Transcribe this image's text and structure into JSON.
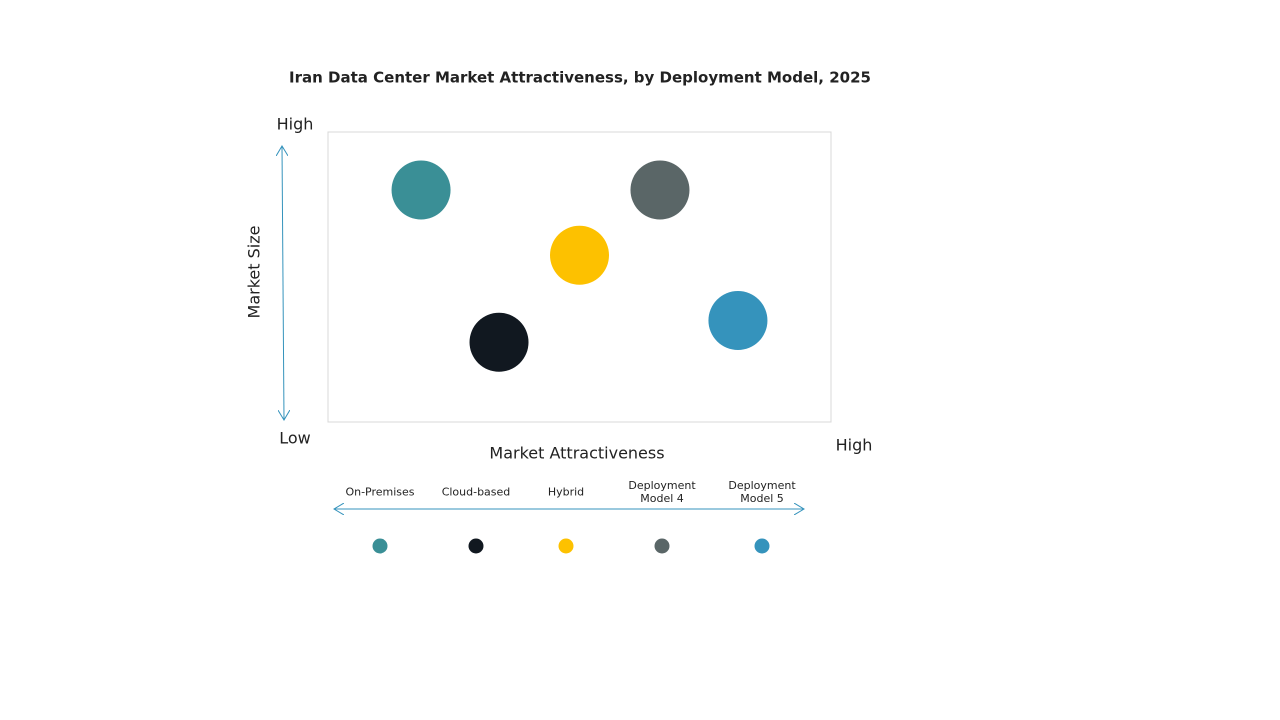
{
  "chart_data": {
    "type": "bubble",
    "title": "Iran Data Center Market Attractiveness,  by Deployment Model, 2025",
    "x_label": "Market Attractiveness",
    "y_label": "Market Size",
    "xlim": [
      0,
      10
    ],
    "ylim": [
      0,
      10
    ],
    "xticks": [
      {
        "value": 10,
        "label": "High"
      }
    ],
    "yticks": [
      {
        "value": 0,
        "label": "Low"
      },
      {
        "value": 10,
        "label": "High"
      }
    ],
    "series": [
      {
        "name": "On-Premises",
        "color": "#3a8f96",
        "x": [
          1.85
        ],
        "y": [
          8
        ]
      },
      {
        "name": "Cloud-based",
        "color": "#111820",
        "x": [
          3.4
        ],
        "y": [
          2.75
        ]
      },
      {
        "name": "Hybrid",
        "color": "#fdc100",
        "x": [
          5
        ],
        "y": [
          5.75
        ]
      },
      {
        "name": "Deployment Model 4",
        "color": "#5a6667",
        "x": [
          6.6
        ],
        "y": [
          8
        ]
      },
      {
        "name": "Deployment Model 5",
        "color": "#3593bc",
        "x": [
          8.15
        ],
        "y": [
          3.5
        ]
      }
    ]
  }
}
